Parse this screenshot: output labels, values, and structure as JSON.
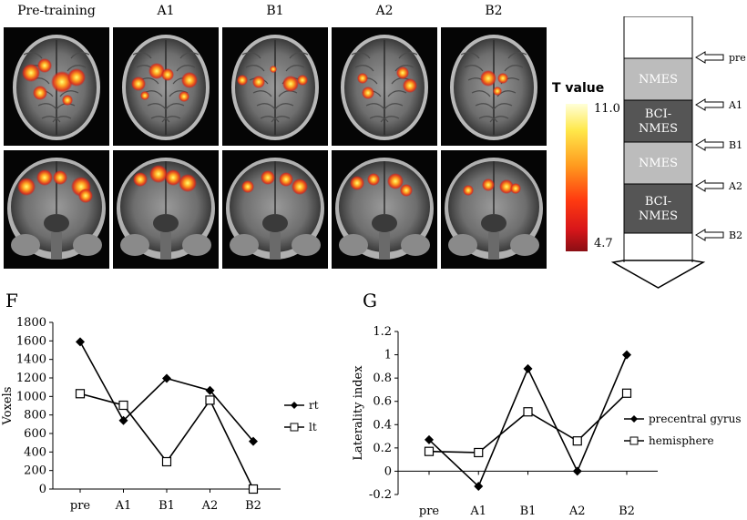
{
  "columns": [
    "Pre-training",
    "A1",
    "B1",
    "A2",
    "B2"
  ],
  "colorbar": {
    "title": "T value",
    "max": "11.0",
    "min": "4.7"
  },
  "schedule": {
    "blocks": [
      "",
      "NMES",
      "BCI-\nNMES",
      "NMES",
      "BCI-\nNMES"
    ],
    "markers": [
      "pre",
      "A1",
      "B1",
      "A2",
      "B2"
    ]
  },
  "chart_data": [
    {
      "panel": "F",
      "type": "line",
      "categories": [
        "pre",
        "A1",
        "B1",
        "A2",
        "B2"
      ],
      "ylabel": "Voxels",
      "ylim": [
        0,
        1800
      ],
      "yticks": [
        0,
        200,
        400,
        600,
        800,
        1000,
        1200,
        1400,
        1600,
        1800
      ],
      "series": [
        {
          "name": "rt",
          "marker": "diamond",
          "values": [
            1590,
            740,
            1195,
            1065,
            515
          ]
        },
        {
          "name": "lt",
          "marker": "square",
          "values": [
            1030,
            905,
            295,
            960,
            0
          ]
        }
      ]
    },
    {
      "panel": "G",
      "type": "line",
      "categories": [
        "pre",
        "A1",
        "B1",
        "A2",
        "B2"
      ],
      "ylabel": "Laterality index",
      "ylim": [
        -0.2,
        1.2
      ],
      "yticks": [
        -0.2,
        0,
        0.2,
        0.4,
        0.6,
        0.8,
        1,
        1.2
      ],
      "series": [
        {
          "name": "precentral gyrus",
          "marker": "diamond",
          "values": [
            0.27,
            -0.13,
            0.88,
            0.0,
            1.0
          ]
        },
        {
          "name": "hemisphere",
          "marker": "square",
          "values": [
            0.17,
            0.16,
            0.51,
            0.26,
            0.67
          ]
        }
      ]
    }
  ]
}
